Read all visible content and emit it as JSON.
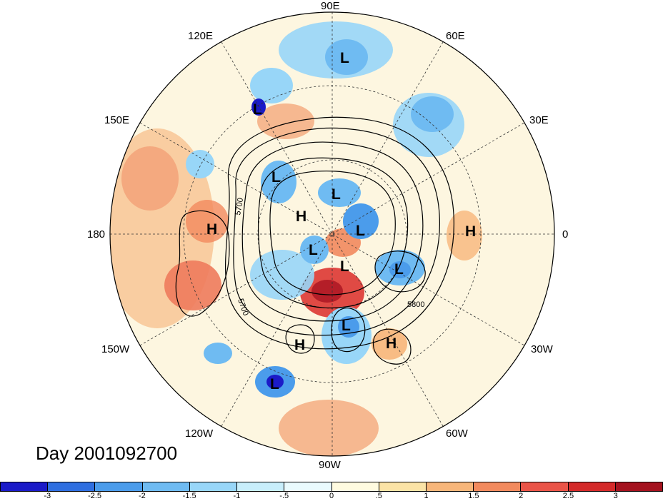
{
  "title": "Day 2001092700",
  "longitude_labels": {
    "top": "90E",
    "top_left": "120E",
    "top_right": "60E",
    "upper_left": "150E",
    "upper_right": "30E",
    "left": "180",
    "right": "0",
    "lower_left": "150W",
    "lower_right": "30W",
    "bottom_left": "120W",
    "bottom_right": "60W",
    "bottom": "90W"
  },
  "pressure_systems": {
    "lows": [
      "L",
      "L",
      "L",
      "L",
      "L",
      "L",
      "L",
      "L",
      "L",
      "L"
    ],
    "highs": [
      "H",
      "H",
      "H",
      "H",
      "H"
    ]
  },
  "contour_labels": [
    "5700",
    "5700",
    "5800"
  ],
  "colorbar": {
    "ticks": [
      "-3",
      "-2.5",
      "-2",
      "-1.5",
      "-1",
      "-.5",
      "0",
      ".5",
      "1",
      "1.5",
      "2",
      "2.5",
      "3"
    ],
    "colors": [
      "#1b1bc8",
      "#2f6fe0",
      "#4b9ceb",
      "#6fbbf2",
      "#98d6f8",
      "#c8eefb",
      "#eafafd",
      "#fffbe0",
      "#fbe3a6",
      "#f7b67a",
      "#f28a5e",
      "#ea5448",
      "#d42a2a",
      "#a4121e"
    ]
  }
}
